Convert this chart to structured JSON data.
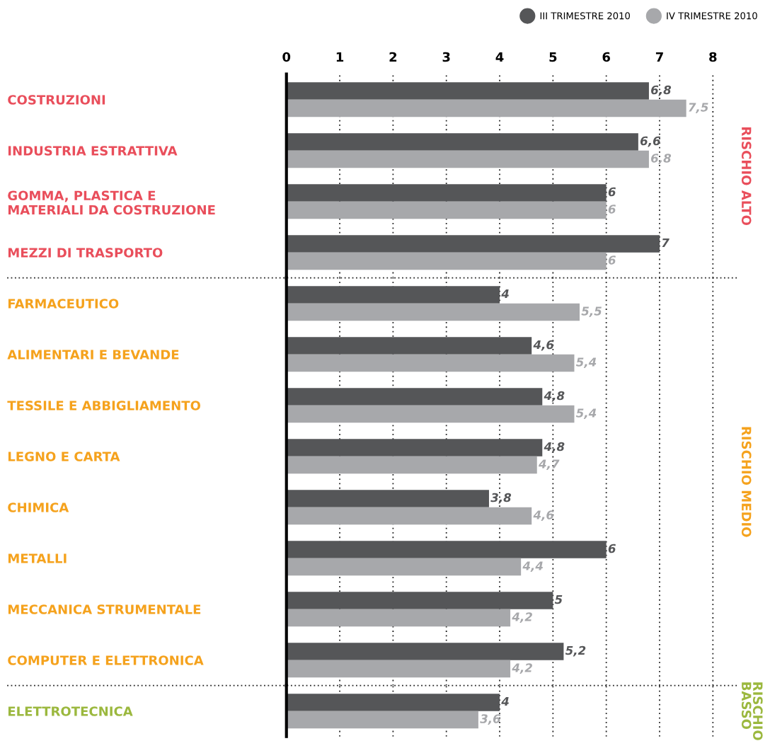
{
  "chart_data": [
    {
      "type": "bar",
      "orientation": "horizontal",
      "legend": "top right",
      "grid": "x",
      "xlim": [
        0,
        8.45
      ],
      "xticks": [
        0,
        1,
        2,
        3,
        4,
        5,
        6,
        7,
        8
      ],
      "categories": [
        "COSTRUZIONI",
        "INDUSTRIA ESTRATTIVA",
        "GOMMA, PLASTICA E\nMATERIALI DA COSTRUZIONE",
        "MEZZI DI TRASPORTO"
      ],
      "series": [
        {
          "name": "III TRIMESTRE 2010",
          "color": "#555658",
          "values": [
            6.8,
            6.6,
            6,
            7
          ],
          "value_labels": [
            "6,8",
            "6,6",
            "6",
            "7"
          ]
        },
        {
          "name": "IV TRIMESTRE 2010",
          "color": "#a7a8ab",
          "values": [
            7.5,
            6.8,
            6,
            6
          ],
          "value_labels": [
            "7,5",
            "6,8",
            "6",
            "6"
          ]
        }
      ],
      "annotations": [
        "RISCHIO ALTO"
      ]
    },
    {
      "type": "bar",
      "orientation": "horizontal",
      "grid": "x",
      "xlim": [
        0,
        8.45
      ],
      "xticks": [
        0,
        1,
        2,
        3,
        4,
        5,
        6,
        7,
        8
      ],
      "tick_labels": "y",
      "categories": [
        "FARMACEUTICO",
        "ALIMENTARI E BEVANDE",
        "TESSILE E ABBIGLIAMENTO",
        "LEGNO E CARTA",
        "CHIMICA",
        "METALLI",
        "MECCANICA STRUMENTALE",
        "COMPUTER E ELETTRONICA"
      ],
      "series": [
        {
          "color": "#555658",
          "values": [
            4,
            4.6,
            4.8,
            4.8,
            3.8,
            6,
            5,
            5.2
          ],
          "value_labels": [
            "4",
            "4,6",
            "4,8",
            "4,8",
            "3,8",
            "6",
            "5",
            "5,2"
          ]
        },
        {
          "color": "#a7a8ab",
          "values": [
            5.5,
            5.4,
            5.4,
            4.7,
            4.6,
            4.4,
            4.2,
            4.2
          ],
          "value_labels": [
            "5,5",
            "5,4",
            "5,4",
            "4,7",
            "4,6",
            "4,4",
            "4,2",
            "4,2"
          ]
        }
      ],
      "annotations": [
        "RISCHIO MEDIO"
      ]
    },
    {
      "type": "bar",
      "orientation": "horizontal",
      "grid": "x",
      "xlim": [
        0,
        8.45
      ],
      "xticks": [
        0,
        1,
        2,
        3,
        4,
        5,
        6,
        7,
        8
      ],
      "tick_labels": "y",
      "categories": [
        "ELETTROTECNICA"
      ],
      "series": [
        {
          "color": "#555658",
          "values": [
            4
          ],
          "value_labels": [
            "4"
          ]
        },
        {
          "color": "#a7a8ab",
          "values": [
            3.6
          ],
          "value_labels": [
            "3,6"
          ]
        }
      ],
      "annotations": [
        "RISCHIO\nBASSO"
      ]
    }
  ]
}
